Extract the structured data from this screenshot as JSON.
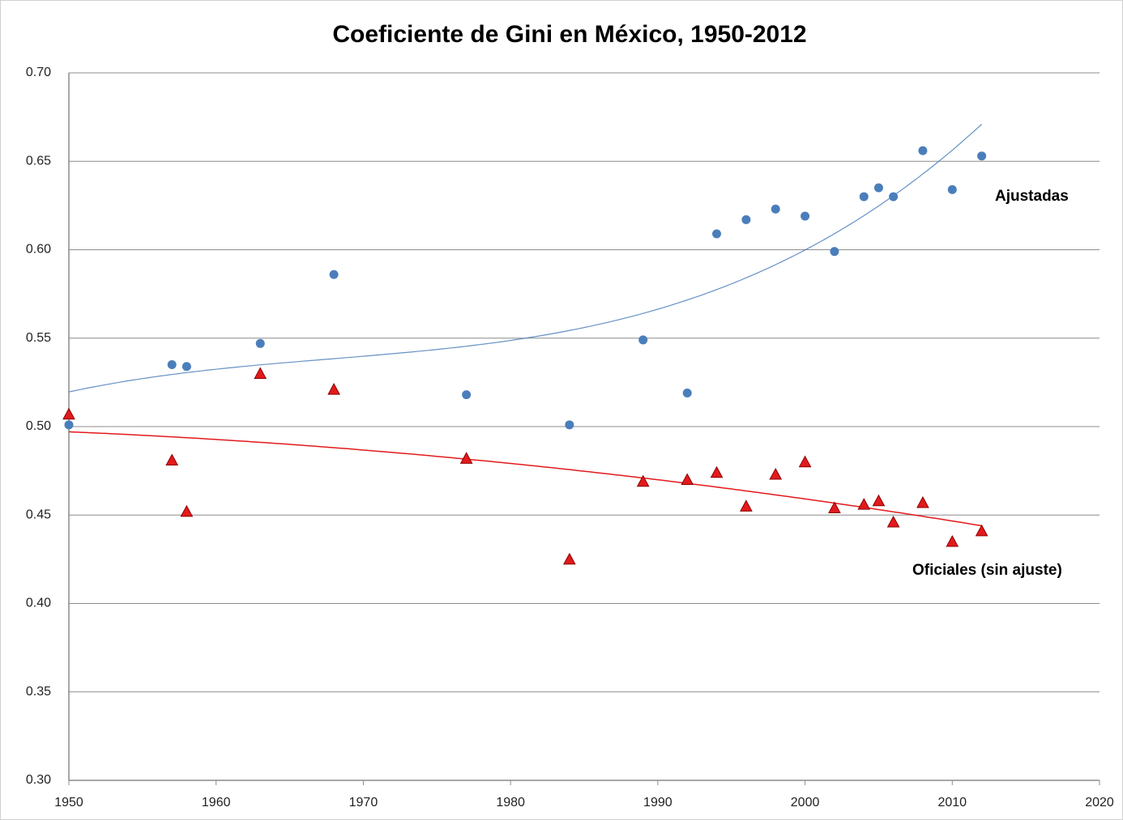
{
  "chart_data": {
    "type": "scatter",
    "title": "Coeficiente de Gini en México, 1950-2012",
    "xlim": [
      1950,
      2020
    ],
    "xticks": [
      1950,
      1960,
      1970,
      1980,
      1990,
      2000,
      2010,
      2020
    ],
    "ylim": [
      0.3,
      0.7
    ],
    "yticks": [
      {
        "value": 0.3,
        "label": "0.30"
      },
      0.35,
      {
        "value": 0.4,
        "label": "0.40"
      },
      0.45,
      {
        "value": 0.5,
        "label": "0.50"
      },
      0.55,
      {
        "value": 0.6,
        "label": "0.60"
      },
      0.65,
      {
        "value": 0.7,
        "label": "0.70"
      }
    ],
    "grid": true,
    "series": [
      {
        "name": "Ajustadas",
        "color": "#4a7ebb",
        "marker": "circle",
        "trendline": {
          "type": "polynomial",
          "order": 3
        },
        "x": [
          1950,
          1957,
          1958,
          1963,
          1968,
          1977,
          1984,
          1989,
          1992,
          1994,
          1996,
          1998,
          2000,
          2002,
          2004,
          2005,
          2006,
          2008,
          2010,
          2012
        ],
        "values": [
          0.501,
          0.535,
          0.534,
          0.547,
          0.586,
          0.518,
          0.501,
          0.549,
          0.519,
          0.609,
          0.617,
          0.623,
          0.619,
          0.599,
          0.63,
          0.635,
          0.63,
          0.656,
          0.634,
          0.653
        ]
      },
      {
        "name": "Oficiales (sin ajuste)",
        "color": "#e31a1c",
        "marker": "triangle",
        "trendline": {
          "type": "polynomial",
          "order": 2
        },
        "x": [
          1950,
          1957,
          1958,
          1963,
          1968,
          1977,
          1984,
          1989,
          1992,
          1994,
          1996,
          1998,
          2000,
          2002,
          2004,
          2005,
          2006,
          2008,
          2010,
          2012
        ],
        "values": [
          0.507,
          0.481,
          0.452,
          0.53,
          0.521,
          0.482,
          0.425,
          0.469,
          0.47,
          0.474,
          0.455,
          0.473,
          0.48,
          0.454,
          0.456,
          0.458,
          0.446,
          0.457,
          0.435,
          0.441
        ]
      }
    ]
  }
}
